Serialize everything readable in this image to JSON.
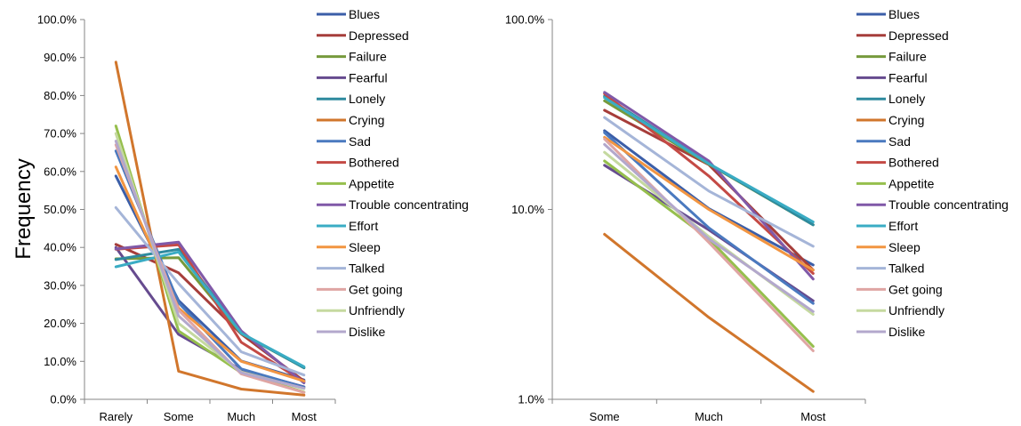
{
  "chart_data": [
    {
      "type": "line",
      "scale": "linear",
      "ylabel": "Frequency",
      "xlabel": "",
      "categories": [
        "Rarely",
        "Some",
        "Much",
        "Most"
      ],
      "ylim": [
        0,
        100
      ],
      "yticks": [
        "0.0%",
        "10.0%",
        "20.0%",
        "30.0%",
        "40.0%",
        "50.0%",
        "60.0%",
        "70.0%",
        "80.0%",
        "90.0%",
        "100.0%"
      ],
      "grid": false,
      "legend_position": "right",
      "series": [
        {
          "name": "Blues",
          "color": "#3b5ea8",
          "values": [
            58.8,
            26.0,
            10.1,
            5.1
          ]
        },
        {
          "name": "Depressed",
          "color": "#a63d3a",
          "values": [
            40.8,
            33.3,
            17.2,
            4.8
          ]
        },
        {
          "name": "Failure",
          "color": "#769a3c",
          "values": [
            37.0,
            37.3,
            17.3,
            8.3
          ]
        },
        {
          "name": "Fearful",
          "color": "#664b8f",
          "values": [
            40.0,
            17.1,
            7.8,
            3.3
          ]
        },
        {
          "name": "Lonely",
          "color": "#2e8a9e",
          "values": [
            36.8,
            39.5,
            17.4,
            8.3
          ]
        },
        {
          "name": "Crying",
          "color": "#d1762c",
          "values": [
            88.8,
            7.4,
            2.7,
            1.1
          ]
        },
        {
          "name": "Sad",
          "color": "#4a79bf",
          "values": [
            65.4,
            25.4,
            8.0,
            3.2
          ]
        },
        {
          "name": "Bothered",
          "color": "#c44a45",
          "values": [
            39.5,
            40.7,
            15.0,
            4.6
          ]
        },
        {
          "name": "Appetite",
          "color": "#96bf4d",
          "values": [
            72.0,
            18.0,
            7.0,
            1.9
          ]
        },
        {
          "name": "Trouble concentrating",
          "color": "#8059a8",
          "values": [
            39.6,
            41.4,
            18.0,
            4.3
          ]
        },
        {
          "name": "Effort",
          "color": "#3aacc4",
          "values": [
            34.9,
            38.8,
            17.4,
            8.6
          ]
        },
        {
          "name": "Sleep",
          "color": "#f29541",
          "values": [
            61.2,
            24.0,
            10.0,
            4.8
          ]
        },
        {
          "name": "Talked",
          "color": "#a5b5d8",
          "values": [
            50.5,
            30.5,
            12.5,
            6.4
          ]
        },
        {
          "name": "Get going",
          "color": "#dfa5a3",
          "values": [
            67.0,
            23.5,
            6.7,
            1.8
          ]
        },
        {
          "name": "Unfriendly",
          "color": "#c5d9a0",
          "values": [
            70.0,
            20.0,
            7.2,
            2.8
          ]
        },
        {
          "name": "Dislike",
          "color": "#b3a8cc",
          "values": [
            68.0,
            22.0,
            7.0,
            2.9
          ]
        }
      ]
    },
    {
      "type": "line",
      "scale": "log",
      "ylabel": "",
      "xlabel": "",
      "categories": [
        "Some",
        "Much",
        "Most"
      ],
      "ylim": [
        1,
        100
      ],
      "yticks": [
        "1.0%",
        "10.0%",
        "100.0%"
      ],
      "grid": false,
      "legend_position": "right",
      "series": [
        {
          "name": "Blues",
          "color": "#3b5ea8",
          "values": [
            26.0,
            10.1,
            5.1
          ]
        },
        {
          "name": "Depressed",
          "color": "#a63d3a",
          "values": [
            33.3,
            17.2,
            4.8
          ]
        },
        {
          "name": "Failure",
          "color": "#769a3c",
          "values": [
            37.3,
            17.3,
            8.3
          ]
        },
        {
          "name": "Fearful",
          "color": "#664b8f",
          "values": [
            17.1,
            7.8,
            3.3
          ]
        },
        {
          "name": "Lonely",
          "color": "#2e8a9e",
          "values": [
            39.5,
            17.4,
            8.3
          ]
        },
        {
          "name": "Crying",
          "color": "#d1762c",
          "values": [
            7.4,
            2.7,
            1.1
          ]
        },
        {
          "name": "Sad",
          "color": "#4a79bf",
          "values": [
            25.4,
            8.0,
            3.2
          ]
        },
        {
          "name": "Bothered",
          "color": "#c44a45",
          "values": [
            40.7,
            15.0,
            4.6
          ]
        },
        {
          "name": "Appetite",
          "color": "#96bf4d",
          "values": [
            18.0,
            7.0,
            1.9
          ]
        },
        {
          "name": "Trouble concentrating",
          "color": "#8059a8",
          "values": [
            41.4,
            18.0,
            4.3
          ]
        },
        {
          "name": "Effort",
          "color": "#3aacc4",
          "values": [
            38.8,
            17.4,
            8.6
          ]
        },
        {
          "name": "Sleep",
          "color": "#f29541",
          "values": [
            24.0,
            10.0,
            4.8
          ]
        },
        {
          "name": "Talked",
          "color": "#a5b5d8",
          "values": [
            30.5,
            12.5,
            6.4
          ]
        },
        {
          "name": "Get going",
          "color": "#dfa5a3",
          "values": [
            23.5,
            6.7,
            1.8
          ]
        },
        {
          "name": "Unfriendly",
          "color": "#c5d9a0",
          "values": [
            20.0,
            7.2,
            2.8
          ]
        },
        {
          "name": "Dislike",
          "color": "#b3a8cc",
          "values": [
            22.0,
            7.0,
            2.9
          ]
        }
      ]
    }
  ]
}
